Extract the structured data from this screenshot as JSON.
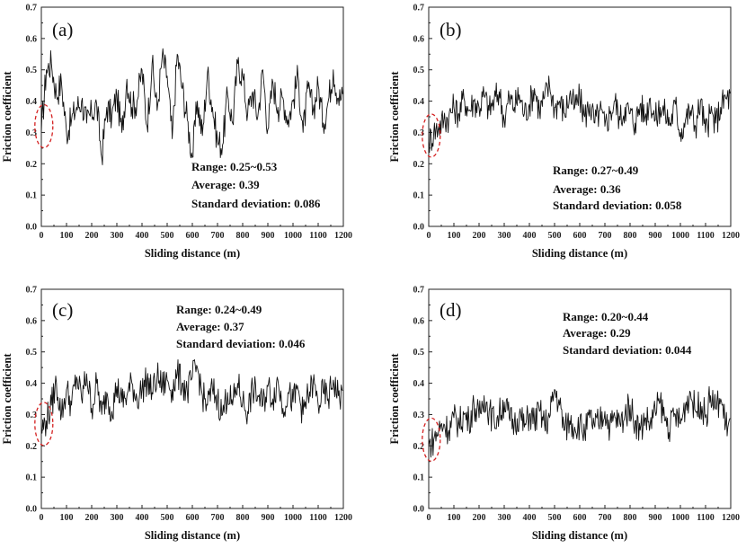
{
  "chart_data": [
    {
      "type": "line",
      "panel_label": "(a)",
      "xlabel": "Sliding distance (m)",
      "ylabel": "Friction coefficient",
      "xlim": [
        0,
        1200
      ],
      "ylim": [
        0.0,
        0.7
      ],
      "xticks": [
        "0",
        "100",
        "200",
        "300",
        "400",
        "500",
        "600",
        "700",
        "800",
        "900",
        "1000",
        "1100",
        "1200"
      ],
      "yticks": [
        "0.0",
        "0.1",
        "0.2",
        "0.3",
        "0.4",
        "0.5",
        "0.6",
        "0.7"
      ],
      "stats": {
        "range": "Range: 0.25~0.53",
        "average": "Average: 0.39",
        "std": "Standard deviation: 0.086"
      },
      "highlight_ellipse": true,
      "series": [
        {
          "x": [
            0,
            20,
            40,
            60,
            80,
            100,
            120,
            140,
            160,
            180,
            200,
            220,
            240,
            260,
            280,
            300,
            320,
            340,
            360,
            380,
            400,
            420,
            440,
            460,
            480,
            500,
            520,
            540,
            560,
            580,
            600,
            620,
            640,
            660,
            680,
            700,
            720,
            740,
            760,
            780,
            800,
            820,
            840,
            860,
            880,
            900,
            920,
            940,
            960,
            980,
            1000,
            1020,
            1040,
            1060,
            1080,
            1100,
            1120,
            1140,
            1160,
            1180
          ],
          "values": [
            0.3,
            0.5,
            0.52,
            0.42,
            0.46,
            0.3,
            0.34,
            0.38,
            0.4,
            0.33,
            0.36,
            0.39,
            0.22,
            0.38,
            0.35,
            0.42,
            0.3,
            0.47,
            0.38,
            0.4,
            0.5,
            0.32,
            0.52,
            0.37,
            0.54,
            0.48,
            0.28,
            0.55,
            0.44,
            0.34,
            0.22,
            0.4,
            0.29,
            0.49,
            0.38,
            0.27,
            0.26,
            0.42,
            0.33,
            0.52,
            0.48,
            0.36,
            0.43,
            0.35,
            0.5,
            0.31,
            0.46,
            0.38,
            0.41,
            0.34,
            0.4,
            0.48,
            0.3,
            0.44,
            0.37,
            0.45,
            0.33,
            0.4,
            0.5,
            0.41
          ]
        }
      ]
    },
    {
      "type": "line",
      "panel_label": "(b)",
      "xlabel": "Sliding distance (m)",
      "ylabel": "Friction coefficient",
      "xlim": [
        0,
        1200
      ],
      "ylim": [
        0.0,
        0.7
      ],
      "xticks": [
        "0",
        "100",
        "200",
        "300",
        "400",
        "500",
        "600",
        "700",
        "800",
        "900",
        "1000",
        "1100",
        "1200"
      ],
      "yticks": [
        "0.0",
        "0.1",
        "0.2",
        "0.3",
        "0.4",
        "0.5",
        "0.6",
        "0.7"
      ],
      "stats": {
        "range": "Range: 0.27~0.49",
        "average": "Average: 0.36",
        "std": "Standard deviation: 0.058"
      },
      "highlight_ellipse": true,
      "series": [
        {
          "x": [
            0,
            20,
            40,
            60,
            80,
            100,
            120,
            140,
            160,
            180,
            200,
            220,
            240,
            260,
            280,
            300,
            320,
            340,
            360,
            380,
            400,
            420,
            440,
            460,
            480,
            500,
            520,
            540,
            560,
            580,
            600,
            620,
            640,
            660,
            680,
            700,
            720,
            740,
            760,
            780,
            800,
            820,
            840,
            860,
            880,
            900,
            920,
            940,
            960,
            980,
            1000,
            1020,
            1040,
            1060,
            1080,
            1100,
            1120,
            1140,
            1160,
            1180
          ],
          "values": [
            0.27,
            0.3,
            0.32,
            0.34,
            0.35,
            0.38,
            0.36,
            0.41,
            0.37,
            0.4,
            0.38,
            0.42,
            0.37,
            0.4,
            0.43,
            0.34,
            0.41,
            0.38,
            0.42,
            0.36,
            0.39,
            0.44,
            0.37,
            0.41,
            0.45,
            0.38,
            0.4,
            0.36,
            0.42,
            0.38,
            0.41,
            0.35,
            0.39,
            0.33,
            0.37,
            0.32,
            0.36,
            0.4,
            0.34,
            0.38,
            0.36,
            0.33,
            0.39,
            0.35,
            0.41,
            0.34,
            0.38,
            0.36,
            0.33,
            0.39,
            0.3,
            0.34,
            0.37,
            0.32,
            0.4,
            0.3,
            0.36,
            0.33,
            0.38,
            0.41
          ]
        }
      ]
    },
    {
      "type": "line",
      "panel_label": "(c)",
      "xlabel": "Sliding distance (m)",
      "ylabel": "Friction coefficient",
      "xlim": [
        0,
        1200
      ],
      "ylim": [
        0.0,
        0.7
      ],
      "xticks": [
        "0",
        "100",
        "200",
        "300",
        "400",
        "500",
        "600",
        "700",
        "800",
        "900",
        "1000",
        "1100",
        "1200"
      ],
      "yticks": [
        "0.0",
        "0.1",
        "0.2",
        "0.3",
        "0.4",
        "0.5",
        "0.6",
        "0.7"
      ],
      "stats": {
        "range": "Range: 0.24~0.49",
        "average": "Average: 0.37",
        "std": "Standard deviation: 0.046"
      },
      "highlight_ellipse": true,
      "series": [
        {
          "x": [
            0,
            20,
            40,
            60,
            80,
            100,
            120,
            140,
            160,
            180,
            200,
            220,
            240,
            260,
            280,
            300,
            320,
            340,
            360,
            380,
            400,
            420,
            440,
            460,
            480,
            500,
            520,
            540,
            560,
            580,
            600,
            620,
            640,
            660,
            680,
            700,
            720,
            740,
            760,
            780,
            800,
            820,
            840,
            860,
            880,
            900,
            920,
            940,
            960,
            980,
            1000,
            1020,
            1040,
            1060,
            1080,
            1100,
            1120,
            1140,
            1160,
            1180
          ],
          "values": [
            0.25,
            0.28,
            0.33,
            0.4,
            0.3,
            0.38,
            0.33,
            0.42,
            0.35,
            0.43,
            0.32,
            0.4,
            0.3,
            0.37,
            0.31,
            0.39,
            0.34,
            0.36,
            0.4,
            0.35,
            0.38,
            0.41,
            0.37,
            0.42,
            0.39,
            0.41,
            0.38,
            0.43,
            0.4,
            0.37,
            0.42,
            0.45,
            0.36,
            0.33,
            0.38,
            0.35,
            0.3,
            0.37,
            0.33,
            0.4,
            0.34,
            0.31,
            0.38,
            0.36,
            0.33,
            0.39,
            0.35,
            0.41,
            0.32,
            0.37,
            0.34,
            0.38,
            0.3,
            0.36,
            0.4,
            0.33,
            0.37,
            0.35,
            0.41,
            0.36
          ]
        }
      ]
    },
    {
      "type": "line",
      "panel_label": "(d)",
      "xlabel": "Sliding distance (m)",
      "ylabel": "Friction coefficient",
      "xlim": [
        0,
        1200
      ],
      "ylim": [
        0.0,
        0.7
      ],
      "xticks": [
        "0",
        "100",
        "200",
        "300",
        "400",
        "500",
        "600",
        "700",
        "800",
        "900",
        "1000",
        "1100",
        "1200"
      ],
      "yticks": [
        "0.0",
        "0.1",
        "0.2",
        "0.3",
        "0.4",
        "0.5",
        "0.6",
        "0.7"
      ],
      "stats": {
        "range": "Range: 0.20~0.44",
        "average": "Average: 0.29",
        "std": "Standard deviation: 0.044"
      },
      "highlight_ellipse": true,
      "series": [
        {
          "x": [
            0,
            20,
            40,
            60,
            80,
            100,
            120,
            140,
            160,
            180,
            200,
            220,
            240,
            260,
            280,
            300,
            320,
            340,
            360,
            380,
            400,
            420,
            440,
            460,
            480,
            500,
            520,
            540,
            560,
            580,
            600,
            620,
            640,
            660,
            680,
            700,
            720,
            740,
            760,
            780,
            800,
            820,
            840,
            860,
            880,
            900,
            920,
            940,
            960,
            980,
            1000,
            1020,
            1040,
            1060,
            1080,
            1100,
            1120,
            1140,
            1160,
            1180
          ],
          "values": [
            0.2,
            0.22,
            0.25,
            0.27,
            0.25,
            0.29,
            0.27,
            0.3,
            0.28,
            0.33,
            0.29,
            0.36,
            0.31,
            0.28,
            0.3,
            0.34,
            0.29,
            0.27,
            0.3,
            0.26,
            0.3,
            0.28,
            0.31,
            0.27,
            0.29,
            0.38,
            0.33,
            0.25,
            0.28,
            0.26,
            0.27,
            0.24,
            0.29,
            0.26,
            0.28,
            0.31,
            0.26,
            0.29,
            0.27,
            0.3,
            0.33,
            0.28,
            0.25,
            0.29,
            0.27,
            0.31,
            0.34,
            0.28,
            0.26,
            0.3,
            0.27,
            0.33,
            0.37,
            0.31,
            0.34,
            0.29,
            0.36,
            0.32,
            0.35,
            0.27
          ]
        }
      ]
    }
  ]
}
